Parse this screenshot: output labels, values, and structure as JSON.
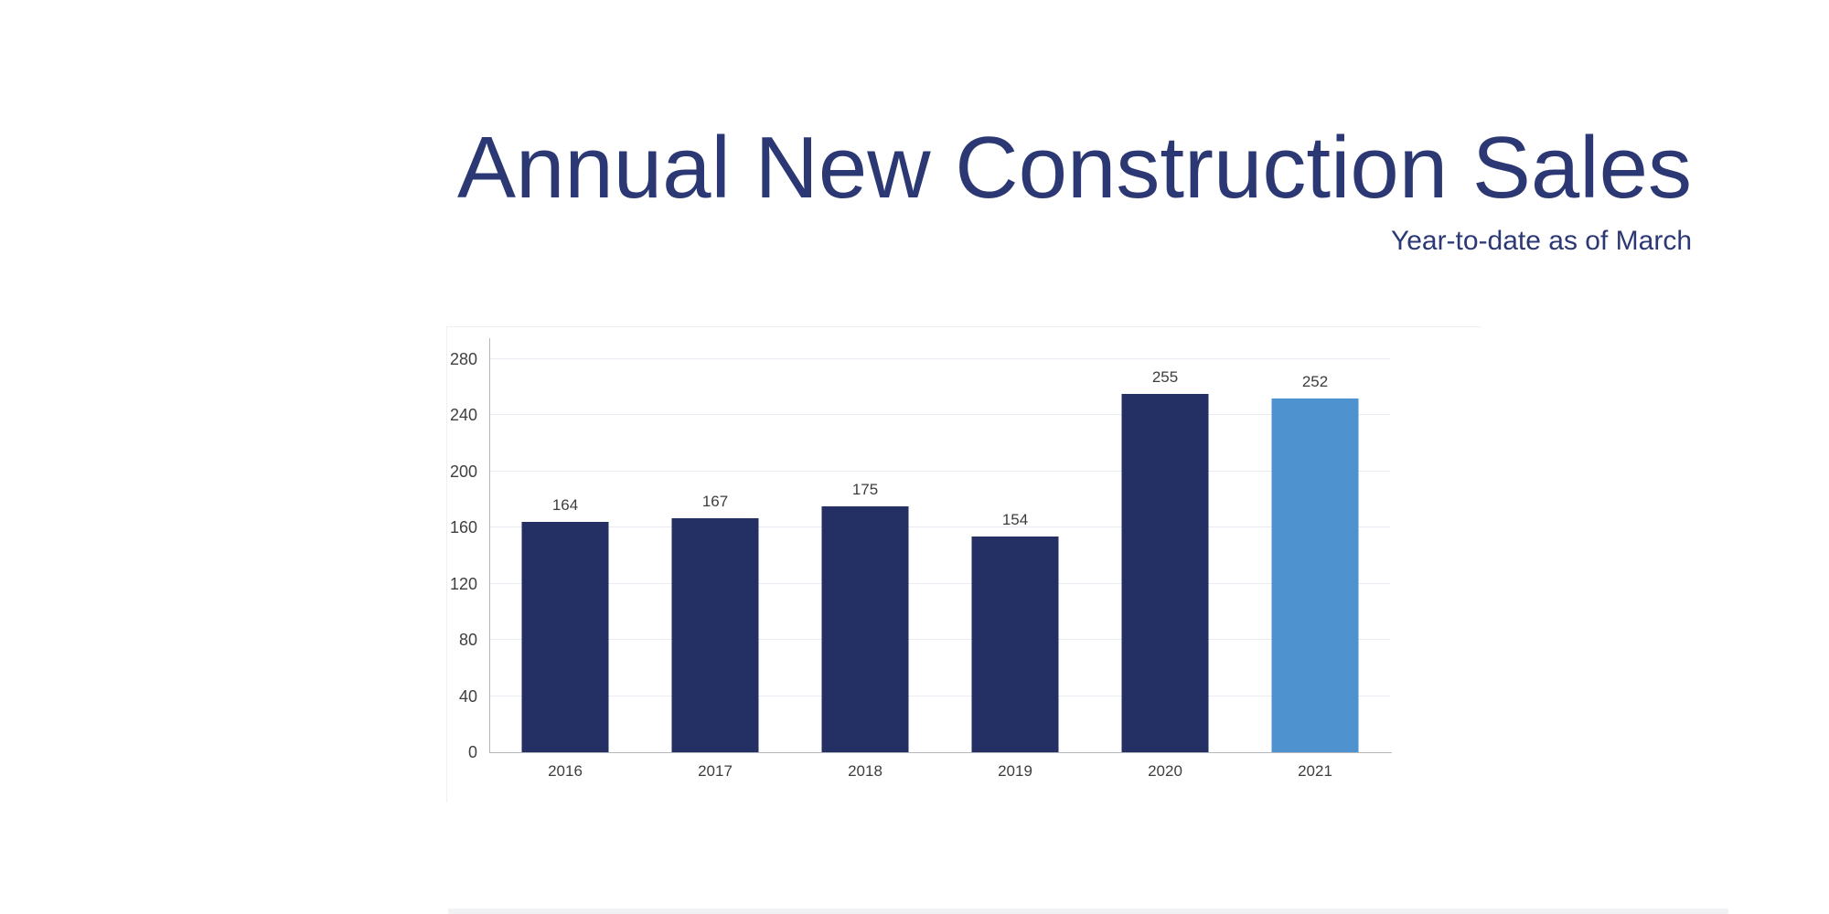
{
  "page": {
    "background": "#ffffff"
  },
  "header": {
    "title": "Annual New Construction Sales",
    "subtitle": "Year-to-date as of March",
    "text_color": "#2b3873"
  },
  "chart_data": {
    "type": "bar",
    "title": "Annual New Construction Sales",
    "subtitle": "Year-to-date as of March",
    "categories": [
      "2016",
      "2017",
      "2018",
      "2019",
      "2020",
      "2021"
    ],
    "values": [
      164,
      167,
      175,
      154,
      255,
      252
    ],
    "xlabel": "",
    "ylabel": "",
    "ylim": [
      0,
      280
    ],
    "yticks": [
      0,
      40,
      80,
      120,
      160,
      200,
      240,
      280
    ],
    "grid": true,
    "legend": "none",
    "bar_color": "#242f64",
    "highlight_index": 5,
    "highlight_color": "#4e93d0",
    "gridline_color": "#e7ecf3",
    "axis_line_color": "#b3b6bb",
    "value_label_color": "#3d3d3d",
    "tick_label_color": "#3f3f3f"
  }
}
